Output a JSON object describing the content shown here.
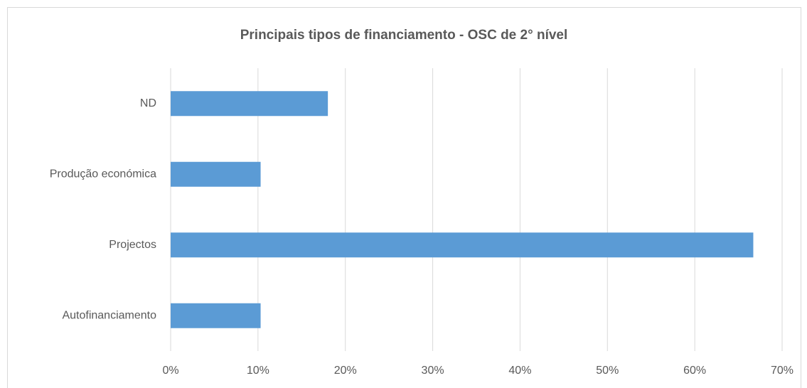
{
  "chart_data": {
    "type": "barh",
    "title": "Principais tipos de financiamento - OSC de 2° nível",
    "categories": [
      "ND",
      "Produção económica",
      "Projectos",
      "Autofinanciamento"
    ],
    "values": [
      18,
      10.3,
      66.7,
      10.3
    ],
    "color": "#5b9bd5",
    "xlim": [
      0,
      70
    ],
    "xticks": [
      {
        "value": 0,
        "label": "0%"
      },
      {
        "value": 10,
        "label": "10%"
      },
      {
        "value": 20,
        "label": "20%"
      },
      {
        "value": 30,
        "label": "30%"
      },
      {
        "value": 40,
        "label": "40%"
      },
      {
        "value": 50,
        "label": "50%"
      },
      {
        "value": 60,
        "label": "60%"
      },
      {
        "value": 70,
        "label": "70%"
      }
    ],
    "grid": true
  }
}
